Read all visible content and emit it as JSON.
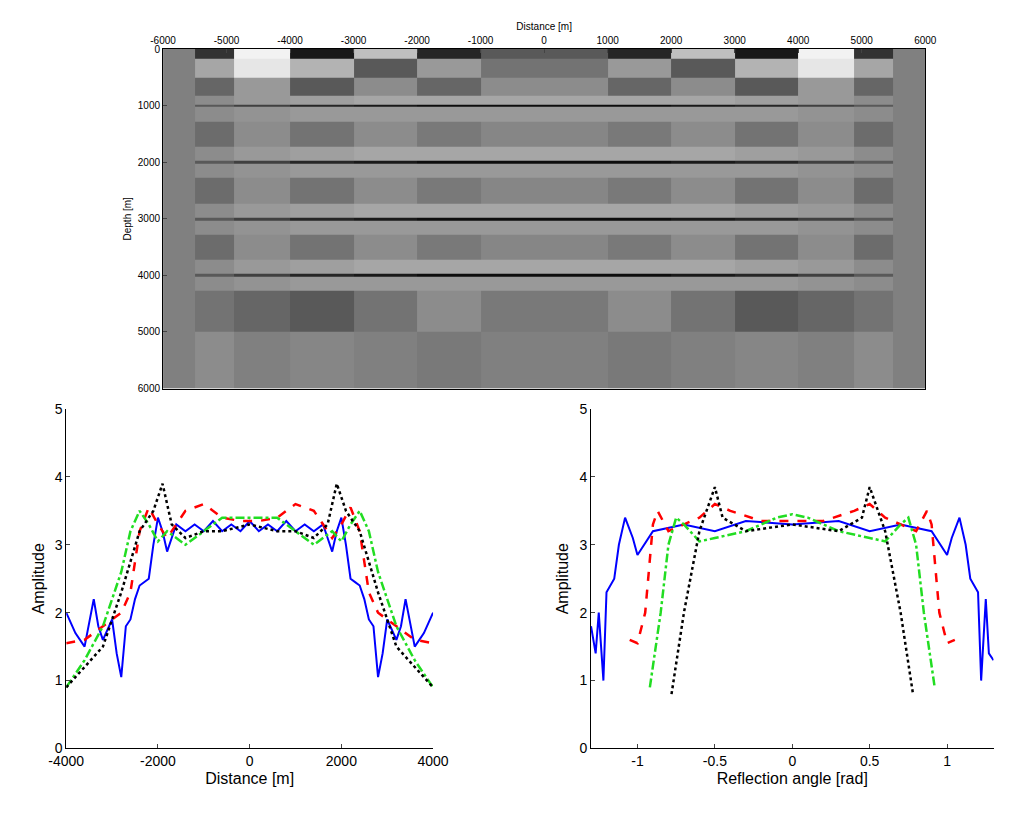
{
  "chart_data": [
    {
      "type": "heatmap",
      "xlabel": "Distance [m]",
      "ylabel": "Depth [m]",
      "xlim": [
        -6000,
        6000
      ],
      "ylim": [
        6000,
        0
      ],
      "xticks": [
        -6000,
        -5000,
        -4000,
        -3000,
        -2000,
        -1000,
        0,
        1000,
        2000,
        3000,
        4000,
        5000,
        6000
      ],
      "yticks": [
        0,
        1000,
        2000,
        3000,
        4000,
        5000,
        6000
      ],
      "zlim": [
        -1,
        1
      ],
      "x": [
        -5750,
        -5250,
        -4500,
        -3500,
        -2500,
        -1500,
        -500,
        500,
        1500,
        2500,
        3500,
        4500,
        5250,
        5750
      ],
      "y": [
        25,
        300,
        700,
        950,
        1000,
        1050,
        1500,
        1950,
        2000,
        2050,
        2500,
        2950,
        3000,
        3050,
        3500,
        3950,
        4000,
        4050,
        4500,
        5500
      ],
      "z": [
        [
          0,
          -0.6,
          0.9,
          -0.8,
          0.5,
          -0.7,
          -0.3,
          -0.3,
          -0.7,
          0.5,
          -0.8,
          0.9,
          -0.6,
          0
        ],
        [
          0,
          0.3,
          0.8,
          0.4,
          -0.3,
          0.2,
          -0.1,
          -0.1,
          0.2,
          -0.3,
          0.4,
          0.8,
          0.3,
          0
        ],
        [
          0,
          -0.2,
          0.2,
          -0.3,
          0.1,
          -0.2,
          0.1,
          0.1,
          -0.2,
          0.1,
          -0.3,
          0.2,
          -0.2,
          0
        ],
        [
          0,
          0.1,
          0.2,
          0.25,
          0.3,
          0.3,
          0.3,
          0.3,
          0.3,
          0.3,
          0.25,
          0.2,
          0.1,
          0
        ],
        [
          0,
          -0.3,
          -0.5,
          -0.7,
          -0.8,
          -0.9,
          -0.9,
          -0.9,
          -0.9,
          -0.8,
          -0.7,
          -0.5,
          -0.3,
          0
        ],
        [
          0,
          0.1,
          0.15,
          0.2,
          0.2,
          0.2,
          0.2,
          0.2,
          0.2,
          0.2,
          0.2,
          0.15,
          0.1,
          0
        ],
        [
          0,
          -0.15,
          0.1,
          -0.1,
          0.1,
          -0.05,
          0.05,
          0.05,
          -0.05,
          0.1,
          -0.1,
          0.1,
          -0.15,
          0
        ],
        [
          0,
          0.1,
          0.2,
          0.25,
          0.3,
          0.3,
          0.3,
          0.3,
          0.3,
          0.3,
          0.25,
          0.2,
          0.1,
          0
        ],
        [
          0,
          -0.3,
          -0.5,
          -0.7,
          -0.8,
          -0.9,
          -0.9,
          -0.9,
          -0.9,
          -0.8,
          -0.7,
          -0.5,
          -0.3,
          0
        ],
        [
          0,
          0.1,
          0.15,
          0.2,
          0.2,
          0.2,
          0.2,
          0.2,
          0.2,
          0.2,
          0.2,
          0.15,
          0.1,
          0
        ],
        [
          0,
          -0.15,
          0.1,
          -0.1,
          0.1,
          -0.05,
          0.05,
          0.05,
          -0.05,
          0.1,
          -0.1,
          0.1,
          -0.15,
          0
        ],
        [
          0,
          0.1,
          0.2,
          0.25,
          0.3,
          0.3,
          0.3,
          0.3,
          0.3,
          0.3,
          0.25,
          0.2,
          0.1,
          0
        ],
        [
          0,
          -0.3,
          -0.5,
          -0.7,
          -0.8,
          -0.9,
          -0.9,
          -0.9,
          -0.9,
          -0.8,
          -0.7,
          -0.5,
          -0.3,
          0
        ],
        [
          0,
          0.1,
          0.15,
          0.2,
          0.2,
          0.2,
          0.2,
          0.2,
          0.2,
          0.2,
          0.2,
          0.15,
          0.1,
          0
        ],
        [
          0,
          -0.15,
          0.1,
          -0.1,
          0.1,
          -0.05,
          0.05,
          0.05,
          -0.05,
          0.1,
          -0.1,
          0.1,
          -0.15,
          0
        ],
        [
          0,
          0.1,
          0.2,
          0.25,
          0.3,
          0.3,
          0.3,
          0.3,
          0.3,
          0.3,
          0.25,
          0.2,
          0.1,
          0
        ],
        [
          0,
          -0.3,
          -0.5,
          -0.7,
          -0.8,
          -0.9,
          -0.9,
          -0.9,
          -0.9,
          -0.8,
          -0.7,
          -0.5,
          -0.3,
          0
        ],
        [
          0,
          0.1,
          0.15,
          0.2,
          0.2,
          0.2,
          0.2,
          0.2,
          0.2,
          0.2,
          0.2,
          0.15,
          0.1,
          0
        ],
        [
          0,
          -0.1,
          -0.2,
          -0.3,
          -0.1,
          0.1,
          -0.05,
          -0.05,
          0.1,
          -0.1,
          -0.3,
          -0.2,
          -0.1,
          0
        ],
        [
          0,
          0.1,
          0,
          0.05,
          0,
          -0.05,
          0,
          0,
          -0.05,
          0,
          0.05,
          0,
          0.1,
          0
        ]
      ]
    },
    {
      "type": "line",
      "xlabel": "Distance [m]",
      "ylabel": "Amplitude",
      "xlim": [
        -4000,
        4000
      ],
      "ylim": [
        0,
        5
      ],
      "xticks": [
        -4000,
        -2000,
        0,
        2000,
        4000
      ],
      "yticks": [
        0,
        1,
        2,
        3,
        4,
        5
      ],
      "series": [
        {
          "color": "#0000ff",
          "line_style": "solid",
          "x": [
            -4000,
            -3800,
            -3600,
            -3400,
            -3300,
            -3200,
            -3000,
            -2900,
            -2800,
            -2700,
            -2600,
            -2500,
            -2400,
            -2300,
            -2200,
            -2100,
            -2000,
            -1900,
            -1800,
            -1700,
            -1600,
            -1400,
            -1200,
            -1000,
            -800,
            -600,
            -400,
            -200,
            0,
            200,
            400,
            600,
            800,
            1000,
            1200,
            1400,
            1600,
            1700,
            1800,
            1900,
            2000,
            2100,
            2200,
            2300,
            2400,
            2500,
            2600,
            2700,
            2800,
            2900,
            3000,
            3200,
            3300,
            3400,
            3600,
            3800,
            4000
          ],
          "values": [
            2.0,
            1.7,
            1.5,
            2.2,
            1.8,
            1.6,
            1.9,
            1.4,
            1.05,
            1.8,
            1.9,
            2.2,
            2.4,
            2.45,
            2.5,
            3.0,
            3.4,
            3.2,
            2.9,
            3.1,
            3.3,
            3.2,
            3.3,
            3.2,
            3.35,
            3.2,
            3.3,
            3.2,
            3.35,
            3.2,
            3.3,
            3.2,
            3.35,
            3.2,
            3.3,
            3.2,
            3.3,
            3.1,
            2.9,
            3.2,
            3.4,
            3.0,
            2.5,
            2.45,
            2.4,
            2.2,
            1.9,
            1.8,
            1.05,
            1.4,
            1.9,
            1.6,
            1.8,
            2.2,
            1.5,
            1.7,
            2.0
          ]
        },
        {
          "color": "#ff0000",
          "line_style": "dash",
          "x": [
            -4000,
            -3600,
            -3200,
            -3000,
            -2800,
            -2600,
            -2400,
            -2200,
            -2000,
            -1800,
            -1600,
            -1400,
            -1000,
            -600,
            -200,
            0,
            200,
            600,
            1000,
            1400,
            1600,
            1800,
            2000,
            2200,
            2400,
            2600,
            2800,
            3000,
            3200,
            3600,
            4000
          ],
          "values": [
            1.55,
            1.6,
            1.8,
            1.9,
            2.0,
            2.3,
            3.2,
            3.55,
            3.3,
            3.1,
            3.3,
            3.5,
            3.6,
            3.4,
            3.35,
            3.35,
            3.35,
            3.4,
            3.6,
            3.5,
            3.3,
            3.1,
            3.3,
            3.55,
            3.2,
            2.3,
            2.0,
            1.9,
            1.8,
            1.6,
            1.55
          ]
        },
        {
          "color": "#22dd22",
          "line_style": "dashdot",
          "x": [
            -4000,
            -3600,
            -3200,
            -3000,
            -2800,
            -2600,
            -2400,
            -2200,
            -2000,
            -1800,
            -1400,
            -1000,
            -600,
            -200,
            0,
            200,
            600,
            1000,
            1400,
            1800,
            2000,
            2200,
            2400,
            2600,
            2800,
            3000,
            3200,
            3600,
            4000
          ],
          "values": [
            0.9,
            1.3,
            1.8,
            2.2,
            2.6,
            3.2,
            3.5,
            3.3,
            3.05,
            3.2,
            3.0,
            3.2,
            3.4,
            3.4,
            3.4,
            3.4,
            3.4,
            3.2,
            3.0,
            3.2,
            3.05,
            3.3,
            3.5,
            3.2,
            2.6,
            2.2,
            1.8,
            1.3,
            0.9
          ]
        },
        {
          "color": "#000000",
          "line_style": "dot",
          "x": [
            -4000,
            -3600,
            -3200,
            -2800,
            -2400,
            -2100,
            -1900,
            -1700,
            -1400,
            -1000,
            -600,
            0,
            600,
            1000,
            1400,
            1700,
            1900,
            2100,
            2400,
            2800,
            3200,
            3600,
            4000
          ],
          "values": [
            0.9,
            1.2,
            1.5,
            2.3,
            3.2,
            3.5,
            3.9,
            3.3,
            3.1,
            3.2,
            3.2,
            3.3,
            3.2,
            3.2,
            3.1,
            3.3,
            3.9,
            3.5,
            3.2,
            2.3,
            1.5,
            1.2,
            0.9
          ]
        }
      ]
    },
    {
      "type": "line",
      "xlabel": "Reflection angle [rad]",
      "ylabel": "Amplitude",
      "xlim": [
        -1.3,
        1.3
      ],
      "ylim": [
        0,
        5
      ],
      "xticks": [
        -1,
        -0.5,
        0,
        0.5,
        1
      ],
      "yticks": [
        0,
        1,
        2,
        3,
        4,
        5
      ],
      "series": [
        {
          "color": "#0000ff",
          "line_style": "solid",
          "x": [
            -1.3,
            -1.27,
            -1.25,
            -1.22,
            -1.2,
            -1.15,
            -1.12,
            -1.08,
            -1.03,
            -1.0,
            -0.9,
            -0.7,
            -0.5,
            -0.3,
            0,
            0.3,
            0.5,
            0.7,
            0.9,
            1.0,
            1.03,
            1.08,
            1.12,
            1.15,
            1.2,
            1.22,
            1.25,
            1.27,
            1.3
          ],
          "values": [
            1.8,
            1.4,
            2.0,
            1.0,
            2.3,
            2.5,
            3.0,
            3.4,
            3.1,
            2.85,
            3.2,
            3.3,
            3.2,
            3.35,
            3.3,
            3.35,
            3.2,
            3.3,
            3.2,
            2.85,
            3.1,
            3.4,
            3.0,
            2.5,
            2.3,
            1.0,
            2.2,
            1.4,
            1.3
          ]
        },
        {
          "color": "#ff0000",
          "line_style": "dash",
          "x": [
            -1.05,
            -1.0,
            -0.95,
            -0.9,
            -0.87,
            -0.8,
            -0.6,
            -0.5,
            -0.4,
            -0.2,
            0,
            0.2,
            0.4,
            0.5,
            0.6,
            0.8,
            0.87,
            0.9,
            0.95,
            1.0,
            1.05
          ],
          "values": [
            1.6,
            1.55,
            2.0,
            3.3,
            3.5,
            3.2,
            3.4,
            3.6,
            3.5,
            3.35,
            3.35,
            3.35,
            3.5,
            3.6,
            3.4,
            3.2,
            3.5,
            3.3,
            2.0,
            1.55,
            1.6
          ]
        },
        {
          "color": "#22dd22",
          "line_style": "dashdot",
          "x": [
            -0.92,
            -0.85,
            -0.8,
            -0.75,
            -0.7,
            -0.6,
            -0.5,
            -0.3,
            -0.1,
            0,
            0.1,
            0.3,
            0.5,
            0.6,
            0.7,
            0.75,
            0.8,
            0.85,
            0.92
          ],
          "values": [
            0.9,
            2.0,
            3.0,
            3.4,
            3.3,
            3.05,
            3.1,
            3.2,
            3.4,
            3.45,
            3.4,
            3.2,
            3.1,
            3.05,
            3.3,
            3.4,
            3.0,
            2.0,
            0.9
          ]
        },
        {
          "color": "#000000",
          "line_style": "dot",
          "x": [
            -0.78,
            -0.7,
            -0.6,
            -0.5,
            -0.45,
            -0.3,
            0,
            0.3,
            0.45,
            0.5,
            0.6,
            0.7,
            0.78
          ],
          "values": [
            0.8,
            2.0,
            3.2,
            3.85,
            3.4,
            3.2,
            3.3,
            3.2,
            3.4,
            3.85,
            3.2,
            2.0,
            0.8
          ]
        }
      ]
    }
  ]
}
